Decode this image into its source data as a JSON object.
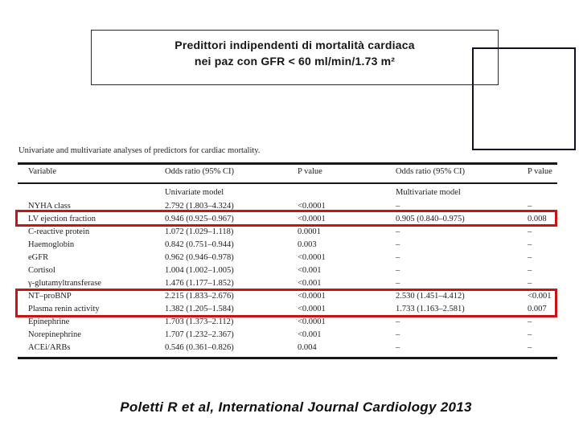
{
  "slide": {
    "title_line1": "Predittori indipendenti di mortalità cardiaca",
    "title_line2": "nei paz con GFR < 60 ml/min/1.73  m²",
    "citation": "Poletti R et al, International Journal Cardiology  2013"
  },
  "table": {
    "caption": "Univariate and multivariate analyses of predictors for cardiac mortality.",
    "headers": [
      "Variable",
      "Odds ratio (95% CI)",
      "P value",
      "Odds ratio (95% CI)",
      "P value"
    ],
    "subheaders": [
      "",
      "Univariate model",
      "",
      "Multivariate model",
      ""
    ],
    "rows": [
      {
        "variable": "NYHA class",
        "uni_or": "2.792 (1.803–4.324)",
        "uni_p": "<0.0001",
        "multi_or": "–",
        "multi_p": "–"
      },
      {
        "variable": "LV ejection fraction",
        "uni_or": "0.946 (0.925–0.967)",
        "uni_p": "<0.0001",
        "multi_or": "0.905 (0.840–0.975)",
        "multi_p": "0.008"
      },
      {
        "variable": "C-reactive protein",
        "uni_or": "1.072 (1.029–1.118)",
        "uni_p": "0.0001",
        "multi_or": "–",
        "multi_p": "–"
      },
      {
        "variable": "Haemoglobin",
        "uni_or": "0.842 (0.751–0.944)",
        "uni_p": "0.003",
        "multi_or": "–",
        "multi_p": "–"
      },
      {
        "variable": "eGFR",
        "uni_or": "0.962 (0.946–0.978)",
        "uni_p": "<0.0001",
        "multi_or": "–",
        "multi_p": "–"
      },
      {
        "variable": "Cortisol",
        "uni_or": "1.004 (1.002–1.005)",
        "uni_p": "<0.001",
        "multi_or": "–",
        "multi_p": "–"
      },
      {
        "variable": "γ-glutamyltransferase",
        "uni_or": "1.476 (1.177–1.852)",
        "uni_p": "<0.001",
        "multi_or": "–",
        "multi_p": "–"
      },
      {
        "variable": "NT–proBNP",
        "uni_or": "2.215 (1.833–2.676)",
        "uni_p": "<0.0001",
        "multi_or": "2.530 (1.451–4.412)",
        "multi_p": "<0.001"
      },
      {
        "variable": "Plasma renin activity",
        "uni_or": "1.382 (1.205–1.584)",
        "uni_p": "<0.0001",
        "multi_or": "1.733 (1.163–2.581)",
        "multi_p": "0.007"
      },
      {
        "variable": "Epinephrine",
        "uni_or": "1.703 (1.373–2.112)",
        "uni_p": "<0.0001",
        "multi_or": "–",
        "multi_p": "–"
      },
      {
        "variable": "Norepinephrine",
        "uni_or": "1.707 (1.232–2.367)",
        "uni_p": "<0.001",
        "multi_or": "–",
        "multi_p": "–"
      },
      {
        "variable": "ACEi/ARBs",
        "uni_or": "0.546 (0.361–0.826)",
        "uni_p": "0.004",
        "multi_or": "–",
        "multi_p": "–"
      }
    ],
    "highlighted_rows": [
      "LV ejection fraction",
      "NT–proBNP",
      "Plasma renin activity"
    ]
  },
  "colors": {
    "highlight_box": "#c81414",
    "rule": "#171717",
    "background": "#ffffff"
  }
}
